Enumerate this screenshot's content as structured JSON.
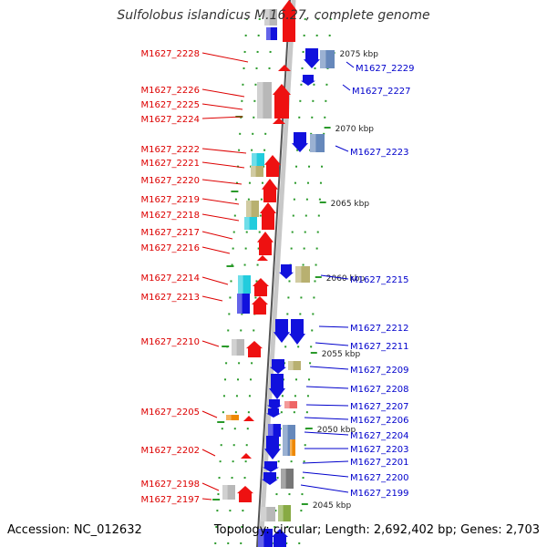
{
  "title": "Sulfolobus islandicus M.16.27, complete genome",
  "footer": {
    "accession": "Accession: NC_012632",
    "topology": "Topology: circular; Length: 2,692,402 bp; Genes: 2,703"
  },
  "colors": {
    "left_label": "#dd0000",
    "right_label": "#0000cc",
    "backbone": "#888888",
    "tick": "#2a9a2a",
    "red_gene": "#ee1111",
    "blue_gene": "#1111dd",
    "cyan_gene": "#22ccdd",
    "olive_gene": "#b8b070",
    "gray_gene": "#b8b8b8",
    "steel_gene": "#6688bb",
    "orange_gene": "#ee8800"
  },
  "scale_labels": [
    "2075 kbp",
    "2070 kbp",
    "2065 kbp",
    "2060 kbp",
    "2055 kbp",
    "2050 kbp",
    "2045 kbp"
  ],
  "left_genes": [
    "M1627_2228",
    "M1627_2226",
    "M1627_2225",
    "M1627_2224",
    "M1627_2222",
    "M1627_2221",
    "M1627_2220",
    "M1627_2219",
    "M1627_2218",
    "M1627_2217",
    "M1627_2216",
    "M1627_2214",
    "M1627_2213",
    "M1627_2210",
    "M1627_2205",
    "M1627_2202",
    "M1627_2198",
    "M1627_2197"
  ],
  "right_genes": [
    "M1627_2229",
    "M1627_2227",
    "M1627_2223",
    "M1627_2215",
    "M1627_2212",
    "M1627_2211",
    "M1627_2209",
    "M1627_2208",
    "M1627_2207",
    "M1627_2206",
    "M1627_2204",
    "M1627_2203",
    "M1627_2201",
    "M1627_2200",
    "M1627_2199"
  ]
}
